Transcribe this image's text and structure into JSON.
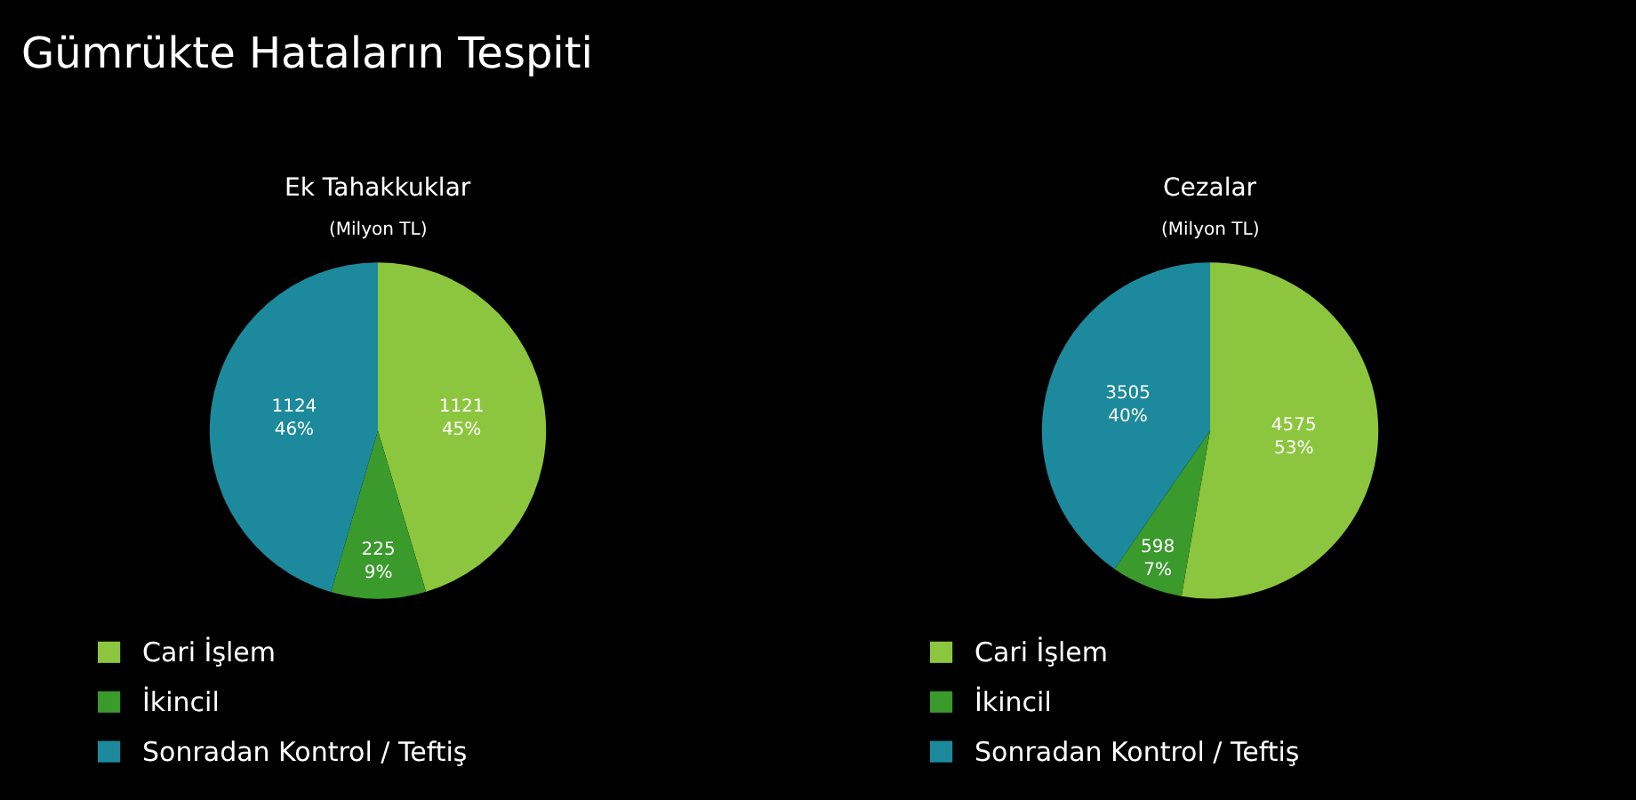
{
  "chart_data": [
    {
      "type": "pie",
      "title": "Ek Tahakkuklar",
      "subtitle": "(Milyon TL)",
      "annotations": [
        "Gümrükte Hataların Tespiti"
      ],
      "categories": [
        "Cari İşlem",
        "İkincil",
        "Sonradan Kontrol / Teftiş"
      ],
      "values": [
        1121,
        225,
        1124
      ],
      "colors": [
        "#8cc63e",
        "#3a9a2c",
        "#1c8a9c"
      ],
      "value_labels": [
        "1121\n45%",
        "225\n9%",
        "1124\n46%"
      ],
      "legend": "bottom"
    },
    {
      "type": "pie",
      "title": "Cezalar",
      "subtitle": "(Milyon TL)",
      "categories": [
        "Cari İşlem",
        "İkincil",
        "Sonradan Kontrol / Teftiş"
      ],
      "values": [
        4575,
        598,
        3505
      ],
      "colors": [
        "#8cc63e",
        "#3a9a2c",
        "#1c8a9c"
      ],
      "value_labels": [
        "4575\n53%",
        "598\n7%",
        "3505\n40%"
      ],
      "legend": "bottom"
    }
  ]
}
